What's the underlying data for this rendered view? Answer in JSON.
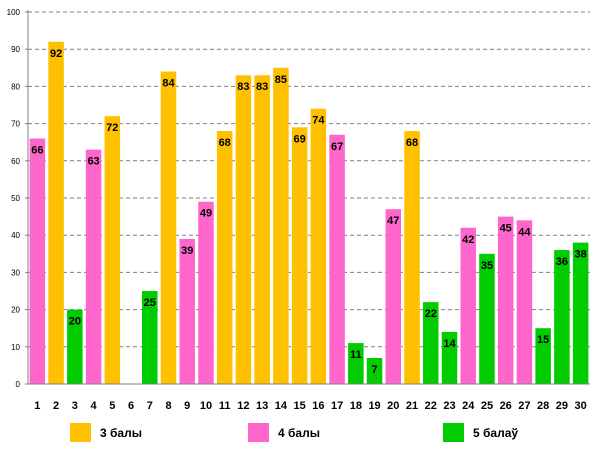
{
  "chart_data": {
    "type": "bar",
    "categories": [
      "1",
      "2",
      "3",
      "4",
      "5",
      "6",
      "7",
      "8",
      "9",
      "10",
      "11",
      "12",
      "13",
      "14",
      "15",
      "16",
      "17",
      "18",
      "19",
      "20",
      "21",
      "22",
      "23",
      "24",
      "25",
      "26",
      "27",
      "28",
      "29",
      "30"
    ],
    "values": [
      66,
      92,
      20,
      63,
      72,
      null,
      25,
      84,
      39,
      49,
      68,
      83,
      83,
      85,
      69,
      74,
      67,
      11,
      7,
      47,
      68,
      22,
      14,
      42,
      35,
      45,
      44,
      15,
      36,
      38
    ],
    "groups": [
      1,
      0,
      2,
      1,
      0,
      null,
      2,
      0,
      1,
      1,
      0,
      0,
      0,
      0,
      0,
      0,
      1,
      2,
      2,
      1,
      0,
      2,
      2,
      1,
      2,
      1,
      1,
      2,
      2,
      2
    ],
    "legend": [
      {
        "name": "3 балы",
        "color": "#FFC000"
      },
      {
        "name": "4 балы",
        "color": "#FF66CC"
      },
      {
        "name": "5 балаў",
        "color": "#00CC00"
      }
    ],
    "ylim": [
      0,
      100
    ],
    "yticks": [
      "0",
      "10",
      "20",
      "30",
      "40",
      "50",
      "60",
      "70",
      "80",
      "90",
      "100"
    ],
    "grid": true,
    "legend_position": "bottom",
    "title": "",
    "xlabel": "",
    "ylabel": ""
  }
}
